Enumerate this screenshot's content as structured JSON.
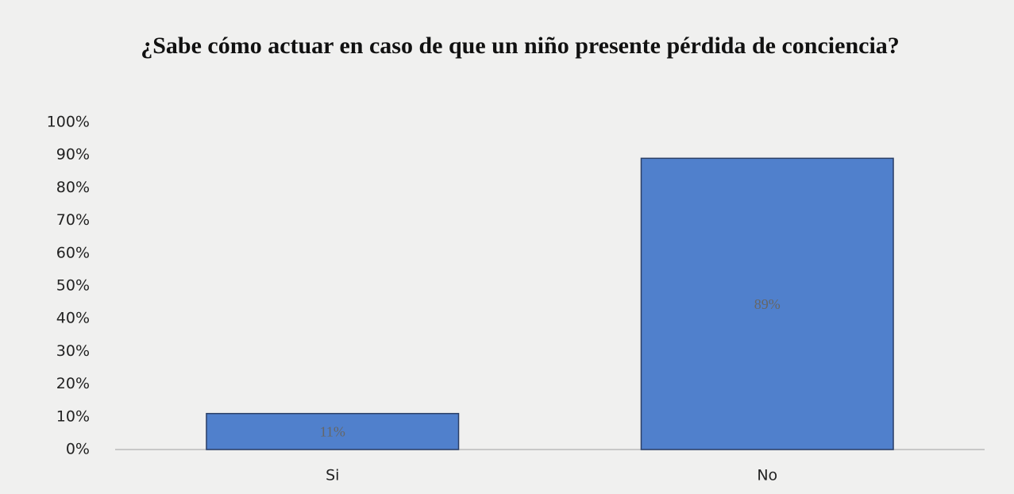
{
  "chart_data": {
    "type": "bar",
    "title": "¿Sabe cómo actuar en caso de que un niño presente pérdida de conciencia?",
    "categories": [
      "Si",
      "No"
    ],
    "values": [
      11,
      89
    ],
    "value_labels": [
      "11%",
      "89%"
    ],
    "color": "#5080cc",
    "ylim": [
      0,
      100
    ],
    "yticks": [
      {
        "value": 0,
        "label": "0%"
      },
      {
        "value": 10,
        "label": "10%"
      },
      {
        "value": 20,
        "label": "20%"
      },
      {
        "value": 30,
        "label": "30%"
      },
      {
        "value": 40,
        "label": "40%"
      },
      {
        "value": 50,
        "label": "50%"
      },
      {
        "value": 60,
        "label": "60%"
      },
      {
        "value": 70,
        "label": "70%"
      },
      {
        "value": 80,
        "label": "80%"
      },
      {
        "value": 90,
        "label": "90%"
      },
      {
        "value": 100,
        "label": "100%"
      }
    ],
    "grid": false
  }
}
